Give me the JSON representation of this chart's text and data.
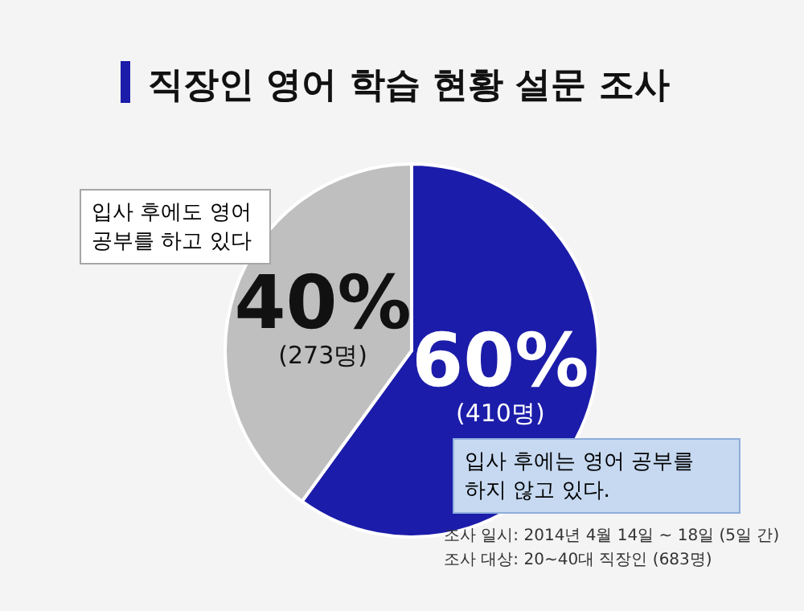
{
  "chart_data": {
    "type": "pie",
    "title": "직장인 영어 학습 현황 설문 조사",
    "categories": [
      "입사 후에는 영어 공부를 하지 않고 있다.",
      "입사 후에도 영어 공부를 하고 있다"
    ],
    "values": [
      60,
      40
    ],
    "colors": [
      "#1c1caa",
      "#bfbfbf"
    ],
    "value_labels": [
      "60% (410명)",
      "40% (273명)"
    ],
    "annotations": [
      "조사 일시: 2014년 4월 14일 ~ 18일 (5일 간)",
      "조사 대상: 20~40대 직장인 (683명)"
    ]
  }
}
